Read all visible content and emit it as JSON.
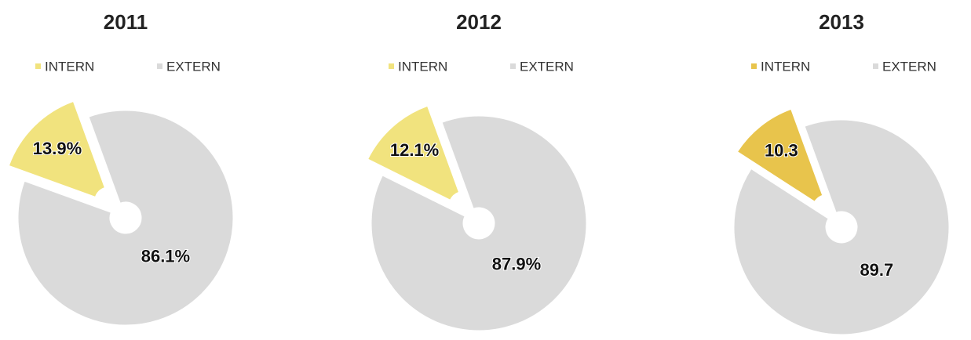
{
  "chart_data": [
    {
      "type": "pie",
      "title": "2011",
      "categories": [
        "INTERN",
        "EXTERN"
      ],
      "values": [
        13.9,
        86.1
      ],
      "value_labels": [
        "13.9%",
        "86.1%"
      ],
      "colors": [
        "#f1e37e",
        "#dadada"
      ]
    },
    {
      "type": "pie",
      "title": "2012",
      "categories": [
        "INTERN",
        "EXTERN"
      ],
      "values": [
        12.1,
        87.9
      ],
      "value_labels": [
        "12.1%",
        "87.9%"
      ],
      "colors": [
        "#f1e37e",
        "#dadada"
      ]
    },
    {
      "type": "pie",
      "title": "2013",
      "categories": [
        "INTERN",
        "EXTERN"
      ],
      "values": [
        10.3,
        89.7
      ],
      "colors": [
        "#e8c44c",
        "#dadada"
      ]
    }
  ]
}
